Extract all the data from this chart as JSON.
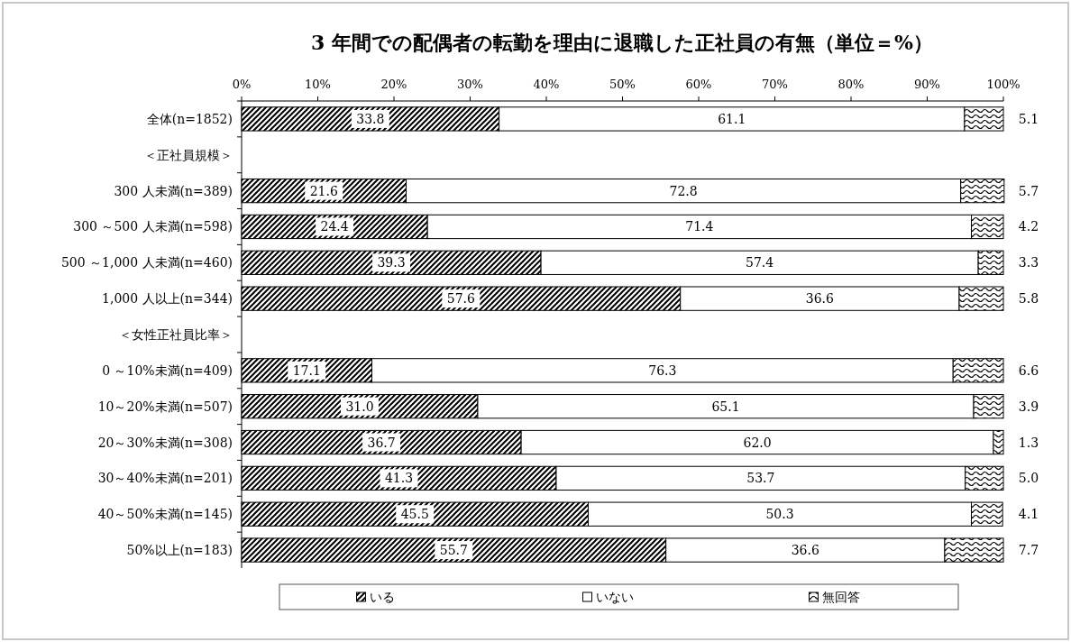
{
  "chart_data": {
    "type": "bar",
    "orientation": "horizontal",
    "stacked": true,
    "title": "3 年間での配偶者の転勤を理由に退職した正社員の有無（単位＝%）",
    "categories": [
      "全体(n=1852)",
      "＜正社員規模＞",
      "300 人未満(n=389)",
      "300 ～500 人未満(n=598)",
      "500 ～1,000 人未満(n=460)",
      "1,000 人以上(n=344)",
      "＜女性正社員比率＞",
      "0 ～10%未満(n=409)",
      "10～20%未満(n=507)",
      "20～30%未満(n=308)",
      "30～40%未満(n=201)",
      "40～50%未満(n=145)",
      "50%以上(n=183)"
    ],
    "series": [
      {
        "name": "いる",
        "color": "#000000",
        "values": [
          33.8,
          null,
          21.6,
          24.4,
          39.3,
          57.6,
          null,
          17.1,
          31.0,
          36.7,
          41.3,
          45.5,
          55.7
        ],
        "value_labels": [
          "33.8",
          null,
          "21.6",
          "24.4",
          "39.3",
          "57.6",
          null,
          "17.1",
          "31.0",
          "36.7",
          "41.3",
          "45.5",
          "55.7"
        ]
      },
      {
        "name": "いない",
        "color": "#ffffff",
        "values": [
          61.1,
          null,
          72.8,
          71.4,
          57.4,
          36.6,
          null,
          76.3,
          65.1,
          62.0,
          53.7,
          50.3,
          36.6
        ],
        "value_labels": [
          "61.1",
          null,
          "72.8",
          "71.4",
          "57.4",
          "36.6",
          null,
          "76.3",
          "65.1",
          "62.0",
          "53.7",
          "50.3",
          "36.6"
        ]
      },
      {
        "name": "無回答",
        "color": "#000000",
        "values": [
          5.1,
          null,
          5.7,
          4.2,
          3.3,
          5.8,
          null,
          6.6,
          3.9,
          1.3,
          5.0,
          4.1,
          7.7
        ],
        "value_labels": [
          "5.1",
          null,
          "5.7",
          "4.2",
          "3.3",
          "5.8",
          null,
          "6.6",
          "3.9",
          "1.3",
          "5.0",
          "4.1",
          "7.7"
        ]
      }
    ],
    "xlim": [
      0,
      100
    ],
    "xticks": [
      {
        "value": 0,
        "label": "0%"
      },
      {
        "value": 10,
        "label": "10%"
      },
      {
        "value": 20,
        "label": "20%"
      },
      {
        "value": 30,
        "label": "30%"
      },
      {
        "value": 40,
        "label": "40%"
      },
      {
        "value": 50,
        "label": "50%"
      },
      {
        "value": 60,
        "label": "60%"
      },
      {
        "value": 70,
        "label": "70%"
      },
      {
        "value": 80,
        "label": "80%"
      },
      {
        "value": 90,
        "label": "90%"
      },
      {
        "value": 100,
        "label": "100%"
      }
    ],
    "legend": "bottom"
  }
}
